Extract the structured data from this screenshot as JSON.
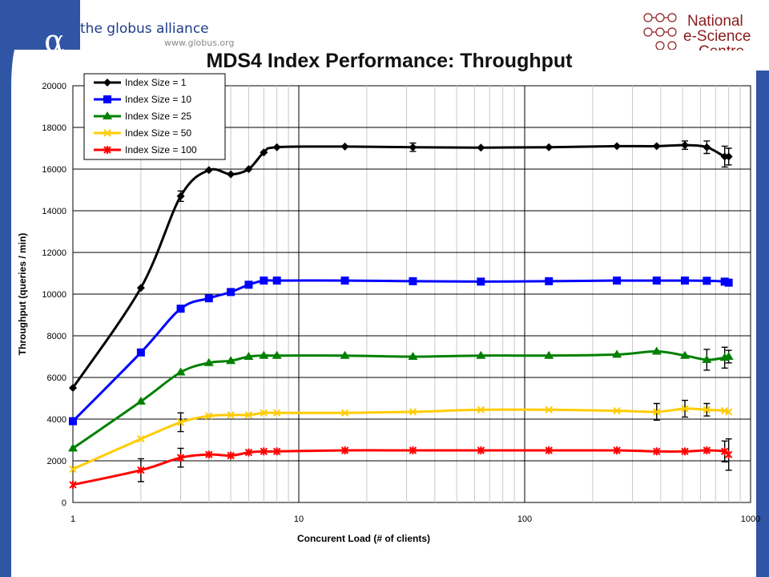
{
  "header": {
    "brand_logo_icon": "globus-alpha-logo-icon",
    "brand_name": "the globus alliance",
    "brand_url": "www.globus.org",
    "partner_logo_icon": "nesc-logo-icon",
    "partner_name_line1": "National",
    "partner_name_line2": "e-Science",
    "partner_name_line3": "Centre"
  },
  "colors": {
    "sidebar": "#2f55a4",
    "grid": "#000000"
  },
  "chart_data": {
    "type": "line",
    "title": "MDS4 Index Performance: Throughput",
    "xlabel": "Concurent Load (# of clients)",
    "ylabel": "Throughput (queries / min)",
    "x_scale": "log",
    "xlim": [
      1,
      1000
    ],
    "ylim": [
      0,
      20000
    ],
    "x_ticks": [
      "1",
      "10",
      "100",
      "1000"
    ],
    "y_ticks": [
      "0",
      "2000",
      "4000",
      "6000",
      "8000",
      "10000",
      "12000",
      "14000",
      "16000",
      "18000",
      "20000"
    ],
    "grid": true,
    "legend_position": "top-left",
    "series": [
      {
        "name": "Index Size = 1",
        "color": "#000000",
        "marker": "diamond",
        "x": [
          1,
          2,
          3,
          4,
          5,
          6,
          7,
          8,
          16,
          32,
          64,
          128,
          256,
          384,
          512,
          640,
          768,
          800
        ],
        "y": [
          5500,
          10300,
          14700,
          15950,
          15750,
          16000,
          16800,
          17050,
          17080,
          17050,
          17030,
          17050,
          17100,
          17100,
          17150,
          17050,
          16600,
          16600
        ],
        "err": [
          0,
          0,
          250,
          0,
          0,
          0,
          0,
          0,
          0,
          200,
          0,
          0,
          0,
          0,
          200,
          300,
          500,
          400
        ]
      },
      {
        "name": "Index Size = 10",
        "color": "#0000ff",
        "marker": "square",
        "x": [
          1,
          2,
          3,
          4,
          5,
          6,
          7,
          8,
          16,
          32,
          64,
          128,
          256,
          384,
          512,
          640,
          768,
          800
        ],
        "y": [
          3900,
          7200,
          9300,
          9800,
          10100,
          10450,
          10650,
          10650,
          10650,
          10620,
          10600,
          10620,
          10650,
          10650,
          10650,
          10640,
          10600,
          10550
        ],
        "err": [
          0,
          0,
          0,
          0,
          0,
          0,
          0,
          0,
          0,
          0,
          0,
          0,
          0,
          0,
          0,
          0,
          0,
          0
        ]
      },
      {
        "name": "Index Size = 25",
        "color": "#008000",
        "marker": "triangle",
        "x": [
          1,
          2,
          3,
          4,
          5,
          6,
          7,
          8,
          16,
          32,
          64,
          128,
          256,
          384,
          512,
          640,
          768,
          800
        ],
        "y": [
          2600,
          4850,
          6250,
          6700,
          6800,
          7000,
          7050,
          7050,
          7050,
          7000,
          7050,
          7050,
          7100,
          7250,
          7050,
          6850,
          6950,
          7000
        ],
        "err": [
          0,
          0,
          0,
          0,
          0,
          0,
          0,
          0,
          0,
          0,
          0,
          0,
          0,
          0,
          0,
          500,
          500,
          300
        ]
      },
      {
        "name": "Index Size = 50",
        "color": "#ffcc00",
        "marker": "x",
        "x": [
          1,
          2,
          3,
          4,
          5,
          6,
          7,
          8,
          16,
          32,
          64,
          128,
          256,
          384,
          512,
          640,
          768,
          800
        ],
        "y": [
          1600,
          3050,
          3850,
          4150,
          4200,
          4200,
          4300,
          4300,
          4300,
          4350,
          4450,
          4450,
          4400,
          4350,
          4500,
          4450,
          4400,
          4350
        ],
        "err": [
          0,
          0,
          450,
          0,
          0,
          0,
          0,
          0,
          0,
          0,
          0,
          0,
          0,
          400,
          400,
          300,
          0,
          0
        ]
      },
      {
        "name": "Index Size = 100",
        "color": "#ff0000",
        "marker": "star",
        "x": [
          1,
          2,
          3,
          4,
          5,
          6,
          7,
          8,
          16,
          32,
          64,
          128,
          256,
          384,
          512,
          640,
          768,
          800
        ],
        "y": [
          850,
          1550,
          2150,
          2300,
          2250,
          2400,
          2450,
          2450,
          2500,
          2500,
          2500,
          2500,
          2500,
          2450,
          2450,
          2500,
          2450,
          2300
        ],
        "err": [
          0,
          550,
          450,
          0,
          0,
          0,
          0,
          0,
          0,
          0,
          0,
          0,
          0,
          0,
          0,
          0,
          500,
          750
        ]
      }
    ]
  }
}
